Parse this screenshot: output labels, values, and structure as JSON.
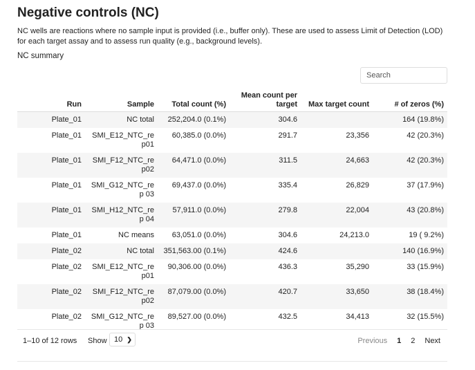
{
  "title": "Negative controls (NC)",
  "description": "NC wells are reactions where no sample input is provided (i.e., buffer only). These are used to assess Limit of Detection (LOD) for each target assay and to assess run quality (e.g., background levels).",
  "subtitle": "NC summary",
  "search": {
    "placeholder": "Search",
    "value": ""
  },
  "table": {
    "columns": [
      "Run",
      "Sample",
      "Total count (%)",
      "Mean count per target",
      "Max target count",
      "# of zeros (%)"
    ],
    "rows": [
      [
        "Plate_01",
        "NC total",
        "252,204.0 (0.1%)",
        "304.6",
        "",
        "164 (19.8%)"
      ],
      [
        "Plate_01",
        "SMI_E12_NTC_rep01",
        "60,385.0 (0.0%)",
        "291.7",
        "23,356",
        "42 (20.3%)"
      ],
      [
        "Plate_01",
        "SMI_F12_NTC_rep02",
        "64,471.0 (0.0%)",
        "311.5",
        "24,663",
        "42 (20.3%)"
      ],
      [
        "Plate_01",
        "SMI_G12_NTC_rep 03",
        "69,437.0 (0.0%)",
        "335.4",
        "26,829",
        "37 (17.9%)"
      ],
      [
        "Plate_01",
        "SMI_H12_NTC_rep 04",
        "57,911.0 (0.0%)",
        "279.8",
        "22,004",
        "43 (20.8%)"
      ],
      [
        "Plate_01",
        "NC means",
        "63,051.0 (0.0%)",
        "304.6",
        "24,213.0",
        "19 ( 9.2%)"
      ],
      [
        "Plate_02",
        "NC total",
        "351,563.00 (0.1%)",
        "424.6",
        "",
        "140 (16.9%)"
      ],
      [
        "Plate_02",
        "SMI_E12_NTC_rep01",
        "90,306.00 (0.0%)",
        "436.3",
        "35,290",
        "33 (15.9%)"
      ],
      [
        "Plate_02",
        "SMI_F12_NTC_rep02",
        "87,079.00 (0.0%)",
        "420.7",
        "33,650",
        "38 (18.4%)"
      ],
      [
        "Plate_02",
        "SMI_G12_NTC_rep 03",
        "89,527.00 (0.0%)",
        "432.5",
        "34,413",
        "32 (15.5%)"
      ]
    ]
  },
  "footer": {
    "rows_info": "1–10 of 12 rows",
    "show_label": "Show",
    "page_size": "10",
    "previous": "Previous",
    "pages": [
      "1",
      "2"
    ],
    "current_page": "1",
    "next": "Next"
  }
}
